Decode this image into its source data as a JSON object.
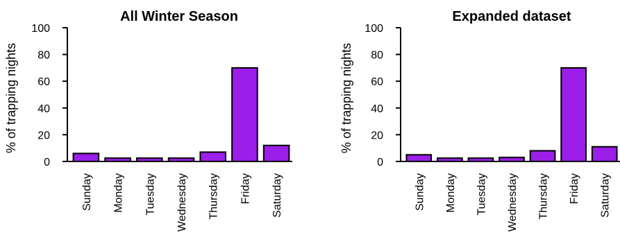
{
  "colors": {
    "bar": "#9b1fe8",
    "axis": "#000000"
  },
  "chart_data": [
    {
      "type": "bar",
      "title": "All Winter Season",
      "ylabel": "% of trapping nights",
      "xlabel": "",
      "ylim": [
        0,
        100
      ],
      "yticks": [
        0,
        20,
        40,
        60,
        80,
        100
      ],
      "categories": [
        "Sunday",
        "Monday",
        "Tuesday",
        "Wednesday",
        "Thursday",
        "Friday",
        "Saturday"
      ],
      "values": [
        6,
        2.5,
        2.5,
        2.5,
        7,
        70,
        12
      ]
    },
    {
      "type": "bar",
      "title": "Expanded dataset",
      "ylabel": "% of trapping nights",
      "xlabel": "",
      "ylim": [
        0,
        100
      ],
      "yticks": [
        0,
        20,
        40,
        60,
        80,
        100
      ],
      "categories": [
        "Sunday",
        "Monday",
        "Tuesday",
        "Wednesday",
        "Thursday",
        "Friday",
        "Saturday"
      ],
      "values": [
        5,
        2.5,
        2.5,
        3,
        8,
        70,
        11
      ]
    }
  ]
}
